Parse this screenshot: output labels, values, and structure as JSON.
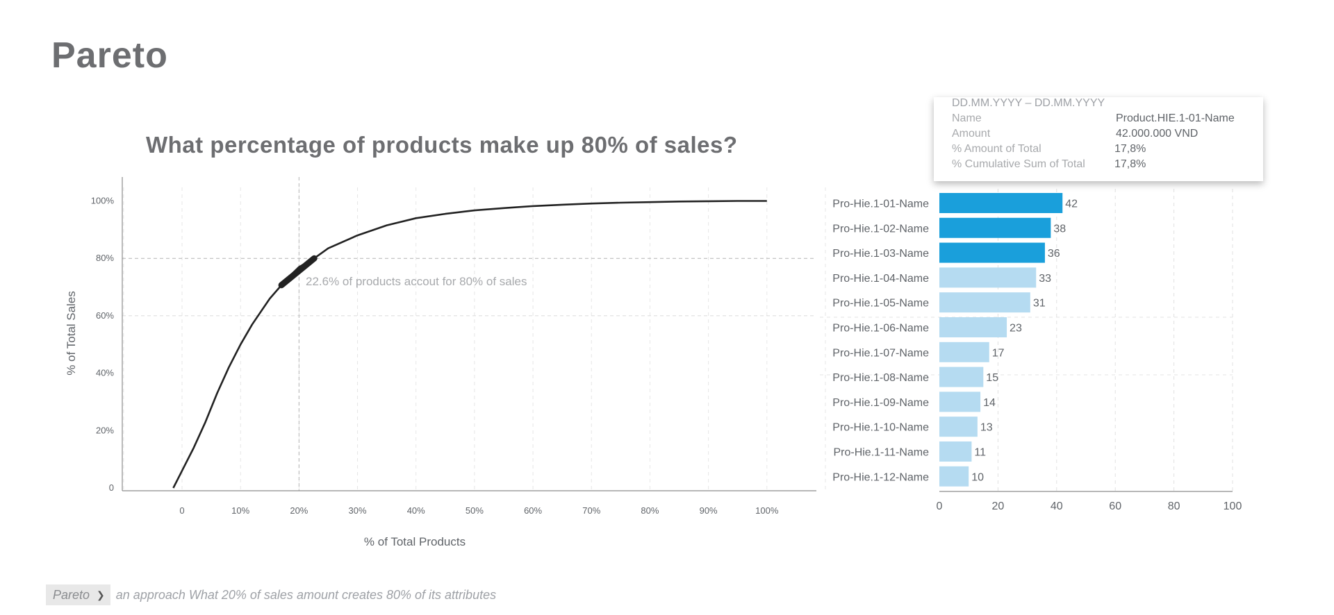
{
  "page": {
    "title": "Pareto"
  },
  "chart_data": [
    {
      "type": "line",
      "title": "What percentage of products make up 80% of sales?",
      "xlabel": "% of Total Products",
      "ylabel": "% of Total Sales",
      "x_ticks": [
        "0",
        "10%",
        "20%",
        "30%",
        "40%",
        "50%",
        "60%",
        "70%",
        "80%",
        "90%",
        "100%"
      ],
      "y_ticks": [
        "0",
        "20%",
        "40%",
        "60%",
        "80%",
        "100%"
      ],
      "xlim": [
        -10,
        110
      ],
      "ylim": [
        0,
        100
      ],
      "series": [
        {
          "x": [
            -1.5,
            0,
            2,
            4,
            6,
            8,
            10,
            12,
            15,
            18,
            20,
            22.6,
            25,
            30,
            35,
            40,
            45,
            50,
            55,
            60,
            65,
            70,
            75,
            80,
            85,
            90,
            95,
            100
          ],
          "y": [
            0,
            6,
            14,
            23,
            33,
            42,
            50,
            57,
            66,
            73,
            77,
            80,
            83.5,
            88,
            91.5,
            94,
            95.5,
            96.7,
            97.5,
            98.2,
            98.7,
            99.1,
            99.4,
            99.6,
            99.8,
            99.9,
            100,
            100
          ]
        }
      ],
      "highlight_range": {
        "x": [
          17,
          22.6
        ]
      },
      "reference_lines": {
        "y": 80,
        "x": 20
      },
      "annotation": "22.6% of products accout for 80% of sales",
      "grid": true
    },
    {
      "type": "bar",
      "orientation": "horizontal",
      "categories": [
        "Pro-Hie.1-01-Name",
        "Pro-Hie.1-02-Name",
        "Pro-Hie.1-03-Name",
        "Pro-Hie.1-04-Name",
        "Pro-Hie.1-05-Name",
        "Pro-Hie.1-06-Name",
        "Pro-Hie.1-07-Name",
        "Pro-Hie.1-08-Name",
        "Pro-Hie.1-09-Name",
        "Pro-Hie.1-10-Name",
        "Pro-Hie.1-11-Name",
        "Pro-Hie.1-12-Name"
      ],
      "values": [
        42,
        38,
        36,
        33,
        31,
        23,
        17,
        15,
        14,
        13,
        11,
        10
      ],
      "highlighted_count": 3,
      "x_ticks": [
        "0",
        "20",
        "40",
        "60",
        "80",
        "100"
      ],
      "xlim": [
        0,
        100
      ],
      "colors": {
        "highlight": "#1a9fdb",
        "normal": "#b5dbf1"
      }
    }
  ],
  "tooltip": {
    "daterange": "DD.MM.YYYY – DD.MM.YYYY",
    "rows": [
      {
        "label": "Name",
        "value": "Product.HIE.1-01-Name"
      },
      {
        "label": "Amount",
        "value": "42.000.000 VND"
      },
      {
        "label": "% Amount of Total",
        "value": "17,8%"
      },
      {
        "label": "% Cumulative Sum of Total",
        "value": "17,8%"
      }
    ]
  },
  "footer": {
    "crumb": "Pareto",
    "description": "an approach What 20% of sales amount creates 80% of its attributes"
  }
}
